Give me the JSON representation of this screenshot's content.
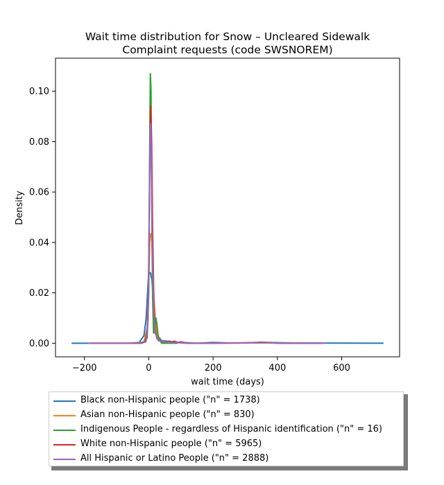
{
  "chart_data": {
    "type": "line",
    "title_line1": "Wait time distribution  for Snow – Uncleared Sidewalk",
    "title_line2": "Complaint requests (code SWSNOREM)",
    "xlabel": "wait time (days)",
    "ylabel": "Density",
    "xlim": [
      -290,
      780
    ],
    "ylim": [
      -0.0054,
      0.1131
    ],
    "xticks": [
      -200,
      0,
      200,
      400,
      600
    ],
    "xtick_labels": [
      "−200",
      "0",
      "200",
      "400",
      "600"
    ],
    "yticks": [
      0.0,
      0.02,
      0.04,
      0.06,
      0.08,
      0.1
    ],
    "ytick_labels": [
      "0.00",
      "0.02",
      "0.04",
      "0.06",
      "0.08",
      "0.10"
    ],
    "legend_position": "below plot",
    "series": [
      {
        "name": "Black non-Hispanic people (\"n\" = 1738)",
        "color": "#1f77b4",
        "points": [
          [
            -240,
            0
          ],
          [
            -60,
            0
          ],
          [
            -30,
            0.0003
          ],
          [
            -15,
            0.003
          ],
          [
            -8,
            0.01
          ],
          [
            -3,
            0.022
          ],
          [
            0,
            0.028
          ],
          [
            5,
            0.028
          ],
          [
            10,
            0.025
          ],
          [
            15,
            0.016
          ],
          [
            20,
            0.008
          ],
          [
            28,
            0.003
          ],
          [
            40,
            0.001
          ],
          [
            60,
            0.0008
          ],
          [
            80,
            0.0005
          ],
          [
            100,
            0.0003
          ],
          [
            150,
            0
          ],
          [
            200,
            0.0003
          ],
          [
            250,
            0.0001
          ],
          [
            300,
            0.0001
          ],
          [
            350,
            0.0004
          ],
          [
            370,
            0.0003
          ],
          [
            450,
            0.0001
          ],
          [
            730,
            0
          ]
        ]
      },
      {
        "name": "Asian non-Hispanic people (\"n\" = 830)",
        "color": "#ff7f0e",
        "points": [
          [
            -180,
            0
          ],
          [
            -40,
            0
          ],
          [
            -15,
            0.0005
          ],
          [
            -5,
            0.006
          ],
          [
            0,
            0.025
          ],
          [
            3,
            0.04
          ],
          [
            6,
            0.0435
          ],
          [
            9,
            0.043
          ],
          [
            12,
            0.03
          ],
          [
            16,
            0.018
          ],
          [
            20,
            0.01
          ],
          [
            25,
            0.004
          ],
          [
            35,
            0.001
          ],
          [
            50,
            0.0005
          ],
          [
            80,
            0.0003
          ],
          [
            120,
            0
          ],
          [
            200,
            0
          ],
          [
            350,
            0.0001
          ],
          [
            480,
            0
          ]
        ]
      },
      {
        "name": "Indigenous People - regardless of Hispanic identification (\"n\" = 16)",
        "color": "#2ca02c",
        "points": [
          [
            -60,
            0
          ],
          [
            -20,
            0
          ],
          [
            -5,
            0.002
          ],
          [
            0,
            0.02
          ],
          [
            3,
            0.08
          ],
          [
            5,
            0.107
          ],
          [
            7,
            0.1
          ],
          [
            9,
            0.06
          ],
          [
            12,
            0.018
          ],
          [
            15,
            0.004
          ],
          [
            18,
            0.006
          ],
          [
            22,
            0.01
          ],
          [
            25,
            0.008
          ],
          [
            30,
            0.002
          ],
          [
            40,
            0
          ],
          [
            90,
            0
          ]
        ]
      },
      {
        "name": "White non-Hispanic people (\"n\" = 5965)",
        "color": "#d62728",
        "points": [
          [
            -180,
            0
          ],
          [
            -30,
            0
          ],
          [
            -10,
            0.0005
          ],
          [
            -3,
            0.008
          ],
          [
            0,
            0.03
          ],
          [
            3,
            0.07
          ],
          [
            6,
            0.094
          ],
          [
            9,
            0.08
          ],
          [
            12,
            0.045
          ],
          [
            16,
            0.015
          ],
          [
            20,
            0.005
          ],
          [
            25,
            0.002
          ],
          [
            35,
            0.0008
          ],
          [
            50,
            0.0004
          ],
          [
            65,
            0.0008
          ],
          [
            70,
            0.0005
          ],
          [
            80,
            0.0008
          ],
          [
            90,
            0.0003
          ],
          [
            100,
            0.0005
          ],
          [
            120,
            0
          ],
          [
            200,
            0
          ],
          [
            360,
            0.0003
          ],
          [
            400,
            0
          ],
          [
            540,
            0
          ]
        ]
      },
      {
        "name": "All Hispanic or Latino People (\"n\" = 2888)",
        "color": "#9467bd",
        "points": [
          [
            -190,
            0
          ],
          [
            -30,
            0
          ],
          [
            -8,
            0.0008
          ],
          [
            -2,
            0.01
          ],
          [
            1,
            0.045
          ],
          [
            4,
            0.082
          ],
          [
            6,
            0.087
          ],
          [
            8,
            0.075
          ],
          [
            11,
            0.04
          ],
          [
            15,
            0.013
          ],
          [
            20,
            0.004
          ],
          [
            30,
            0.001
          ],
          [
            50,
            0.0005
          ],
          [
            80,
            0.0003
          ],
          [
            120,
            0
          ],
          [
            200,
            0
          ],
          [
            360,
            0.0002
          ],
          [
            420,
            0
          ],
          [
            550,
            0
          ]
        ]
      }
    ]
  }
}
